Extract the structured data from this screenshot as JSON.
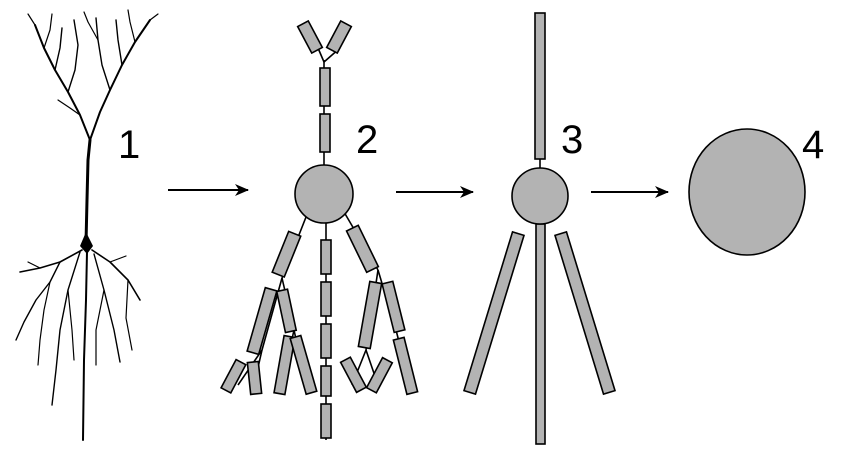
{
  "panels": [
    {
      "label": "1",
      "kind": "neuron"
    },
    {
      "label": "2",
      "kind": "multi-compartment"
    },
    {
      "label": "3",
      "kind": "reduced-compartment"
    },
    {
      "label": "4",
      "kind": "point"
    }
  ],
  "arrows": 3,
  "colors": {
    "compartment_fill": "#b3b3b3",
    "stroke": "#000000",
    "background": "#ffffff"
  }
}
